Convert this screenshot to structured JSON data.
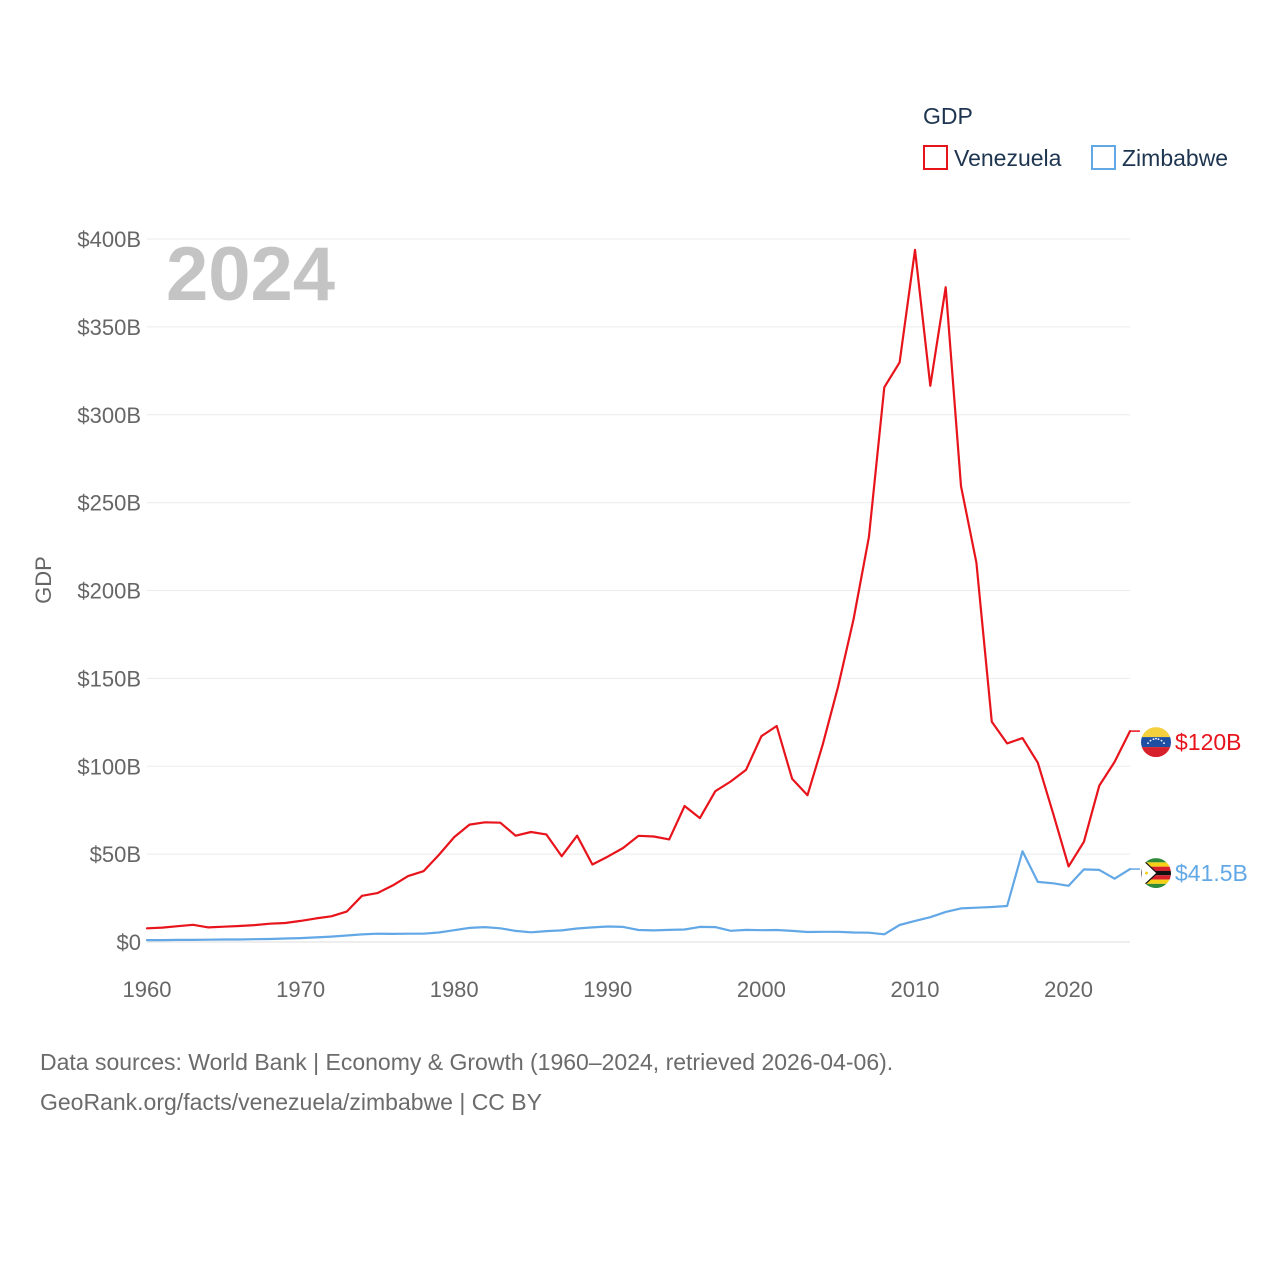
{
  "chart_data": {
    "type": "line",
    "year_label": "2024",
    "ylabel": "GDP",
    "legend_title": "GDP",
    "xlim": [
      1960,
      2024
    ],
    "ylim": [
      0,
      400
    ],
    "yticks": [
      {
        "value": 0,
        "label": "$0"
      },
      {
        "value": 50,
        "label": "$50B"
      },
      {
        "value": 100,
        "label": "$100B"
      },
      {
        "value": 150,
        "label": "$150B"
      },
      {
        "value": 200,
        "label": "$200B"
      },
      {
        "value": 250,
        "label": "$250B"
      },
      {
        "value": 300,
        "label": "$300B"
      },
      {
        "value": 350,
        "label": "$350B"
      },
      {
        "value": 400,
        "label": "$400B"
      }
    ],
    "xticks": [
      {
        "value": 1960,
        "label": "1960"
      },
      {
        "value": 1970,
        "label": "1970"
      },
      {
        "value": 1980,
        "label": "1980"
      },
      {
        "value": 1990,
        "label": "1990"
      },
      {
        "value": 2000,
        "label": "2000"
      },
      {
        "value": 2010,
        "label": "2010"
      },
      {
        "value": 2020,
        "label": "2020"
      }
    ],
    "series": [
      {
        "name": "Venezuela",
        "color": "#e8141c",
        "end_label": "$120B",
        "flag": "venezuela-flag",
        "x": [
          1960,
          1961,
          1962,
          1963,
          1964,
          1965,
          1966,
          1967,
          1968,
          1969,
          1970,
          1971,
          1972,
          1973,
          1974,
          1975,
          1976,
          1977,
          1978,
          1979,
          1980,
          1981,
          1982,
          1983,
          1984,
          1985,
          1986,
          1987,
          1988,
          1989,
          1990,
          1991,
          1992,
          1993,
          1994,
          1995,
          1996,
          1997,
          1998,
          1999,
          2000,
          2001,
          2002,
          2003,
          2004,
          2005,
          2006,
          2007,
          2008,
          2009,
          2010,
          2011,
          2012,
          2013,
          2014,
          2015,
          2016,
          2017,
          2018,
          2019,
          2020,
          2021,
          2022,
          2023,
          2024
        ],
        "values": [
          7.8,
          8.2,
          9.0,
          9.8,
          8.3,
          8.7,
          9.1,
          9.6,
          10.4,
          10.8,
          12.0,
          13.4,
          14.6,
          17.3,
          26.3,
          27.8,
          32.2,
          37.5,
          40.3,
          49.5,
          59.7,
          66.8,
          68.1,
          67.9,
          60.5,
          62.6,
          61.2,
          48.8,
          60.5,
          44.1,
          48.6,
          53.5,
          60.4,
          60.0,
          58.4,
          77.4,
          70.5,
          85.8,
          91.3,
          97.9,
          117.1,
          122.9,
          92.9,
          83.5,
          112.5,
          145.5,
          183.5,
          230.4,
          315.6,
          329.8,
          393.8,
          316.5,
          372.6,
          259.4,
          215.8,
          125.3,
          113.0,
          116.0,
          102.0,
          73.0,
          43.0,
          57.0,
          89.0,
          102.5,
          120.0
        ]
      },
      {
        "name": "Zimbabwe",
        "color": "#63a8e6",
        "end_label": "$41.5B",
        "flag": "zimbabwe-flag",
        "x": [
          1960,
          1961,
          1962,
          1963,
          1964,
          1965,
          1966,
          1967,
          1968,
          1969,
          1970,
          1971,
          1972,
          1973,
          1974,
          1975,
          1976,
          1977,
          1978,
          1979,
          1980,
          1981,
          1982,
          1983,
          1984,
          1985,
          1986,
          1987,
          1988,
          1989,
          1990,
          1991,
          1992,
          1993,
          1994,
          1995,
          1996,
          1997,
          1998,
          1999,
          2000,
          2001,
          2002,
          2003,
          2004,
          2005,
          2006,
          2007,
          2008,
          2009,
          2010,
          2011,
          2012,
          2013,
          2014,
          2015,
          2016,
          2017,
          2018,
          2019,
          2020,
          2021,
          2022,
          2023,
          2024
        ],
        "values": [
          1.1,
          1.1,
          1.2,
          1.2,
          1.3,
          1.4,
          1.4,
          1.6,
          1.7,
          2.0,
          2.2,
          2.6,
          3.1,
          3.7,
          4.3,
          4.7,
          4.6,
          4.7,
          4.7,
          5.4,
          6.7,
          8.0,
          8.5,
          7.8,
          6.3,
          5.5,
          6.2,
          6.6,
          7.7,
          8.3,
          8.8,
          8.6,
          6.8,
          6.6,
          6.9,
          7.1,
          8.6,
          8.5,
          6.4,
          6.9,
          6.7,
          6.8,
          6.3,
          5.7,
          5.8,
          5.8,
          5.4,
          5.3,
          4.4,
          9.7,
          12.0,
          14.1,
          17.1,
          19.1,
          19.5,
          19.9,
          20.5,
          51.6,
          34.2,
          33.4,
          32.0,
          41.3,
          41.0,
          36.0,
          41.5
        ]
      }
    ]
  },
  "footer": {
    "sources": "Data sources: World Bank | Economy & Growth (1960–2024, retrieved 2026-04-06).",
    "attribution": "GeoRank.org/facts/venezuela/zimbabwe | CC BY"
  }
}
